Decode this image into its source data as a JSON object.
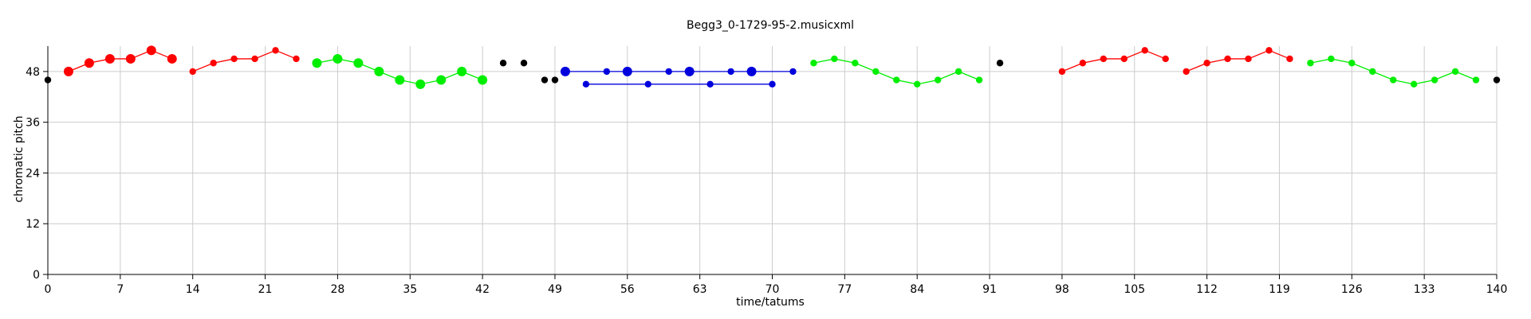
{
  "chart_data": {
    "type": "scatter",
    "title": "Begg3_0-1729-95-2.musicxml",
    "xlabel": "time/tatums",
    "ylabel": "chromatic pitch",
    "xlim": [
      0,
      140
    ],
    "ylim": [
      0,
      54
    ],
    "xticks": [
      0,
      7,
      14,
      21,
      28,
      35,
      42,
      49,
      56,
      63,
      70,
      77,
      84,
      91,
      98,
      105,
      112,
      119,
      126,
      133,
      140
    ],
    "yticks": [
      0,
      12,
      24,
      36,
      48
    ],
    "grid": true,
    "series": [
      {
        "color": "#ff0000",
        "connected": true,
        "points": [
          [
            2,
            48
          ],
          [
            4,
            50
          ],
          [
            6,
            51
          ],
          [
            8,
            51
          ],
          [
            10,
            53
          ],
          [
            12,
            51
          ]
        ],
        "emphasis": [
          0,
          1,
          2,
          3,
          4,
          5
        ]
      },
      {
        "color": "#ff0000",
        "connected": true,
        "points": [
          [
            14,
            48
          ],
          [
            16,
            50
          ],
          [
            18,
            51
          ],
          [
            20,
            51
          ],
          [
            22,
            53
          ],
          [
            24,
            51
          ]
        ],
        "emphasis": []
      },
      {
        "color": "#00ee00",
        "connected": true,
        "points": [
          [
            26,
            50
          ],
          [
            28,
            51
          ],
          [
            30,
            50
          ],
          [
            32,
            48
          ],
          [
            34,
            46
          ],
          [
            36,
            45
          ],
          [
            38,
            46
          ],
          [
            40,
            48
          ],
          [
            42,
            46
          ]
        ],
        "emphasis": [
          0,
          1,
          2,
          3,
          4,
          5,
          6,
          7,
          8
        ]
      },
      {
        "color": "#000000",
        "connected": false,
        "points": [
          [
            0,
            46
          ],
          [
            44,
            50
          ],
          [
            46,
            50
          ],
          [
            48,
            46
          ],
          [
            49,
            46
          ],
          [
            92,
            50
          ],
          [
            140,
            46
          ]
        ],
        "emphasis": []
      },
      {
        "color": "#0000dd",
        "connected": true,
        "points": [
          [
            50,
            48
          ],
          [
            54,
            48
          ],
          [
            56,
            48
          ],
          [
            60,
            48
          ],
          [
            62,
            48
          ],
          [
            66,
            48
          ],
          [
            68,
            48
          ],
          [
            72,
            48
          ]
        ],
        "emphasis": [
          0,
          2,
          4,
          6
        ]
      },
      {
        "color": "#0000dd",
        "connected": true,
        "points": [
          [
            52,
            45
          ],
          [
            58,
            45
          ],
          [
            64,
            45
          ],
          [
            70,
            45
          ]
        ],
        "emphasis": []
      },
      {
        "color": "#00ee00",
        "connected": true,
        "points": [
          [
            74,
            50
          ],
          [
            76,
            51
          ],
          [
            78,
            50
          ],
          [
            80,
            48
          ],
          [
            82,
            46
          ],
          [
            84,
            45
          ],
          [
            86,
            46
          ],
          [
            88,
            48
          ],
          [
            90,
            46
          ]
        ],
        "emphasis": []
      },
      {
        "color": "#ff0000",
        "connected": true,
        "points": [
          [
            98,
            48
          ],
          [
            100,
            50
          ],
          [
            102,
            51
          ],
          [
            104,
            51
          ],
          [
            106,
            53
          ],
          [
            108,
            51
          ]
        ],
        "emphasis": []
      },
      {
        "color": "#ff0000",
        "connected": true,
        "points": [
          [
            110,
            48
          ],
          [
            112,
            50
          ],
          [
            114,
            51
          ],
          [
            116,
            51
          ],
          [
            118,
            53
          ],
          [
            120,
            51
          ]
        ],
        "emphasis": []
      },
      {
        "color": "#00ee00",
        "connected": true,
        "points": [
          [
            122,
            50
          ],
          [
            124,
            51
          ],
          [
            126,
            50
          ],
          [
            128,
            48
          ],
          [
            130,
            46
          ],
          [
            132,
            45
          ],
          [
            134,
            46
          ],
          [
            136,
            48
          ],
          [
            138,
            46
          ]
        ],
        "emphasis": []
      }
    ]
  }
}
